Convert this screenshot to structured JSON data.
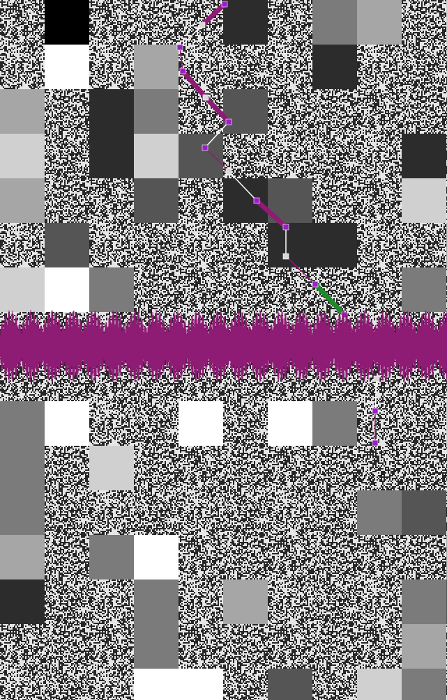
{
  "palette": {
    "tile_colors": [
      "#2c2c2c",
      "#555555",
      "#7b7b7b",
      "#a6a6a6",
      "#d0d0d0",
      "#ffffff"
    ],
    "noise_dark": "#262626",
    "noise_light": "#e6e6e6",
    "path_magenta": "#8e1b74",
    "path_violet": "#9b1fc7",
    "path_green": "#1f8a2a",
    "path_white": "#ffffff",
    "band_color": "#8e1b74"
  }
}
